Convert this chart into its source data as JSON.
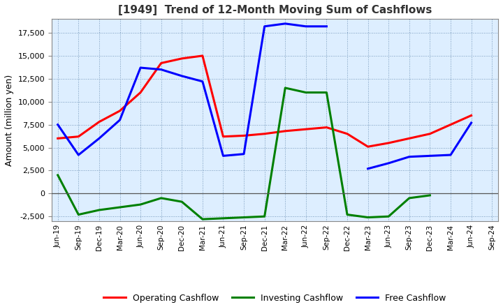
{
  "title": "[1949]  Trend of 12-Month Moving Sum of Cashflows",
  "ylabel": "Amount (million yen)",
  "xlabel": "",
  "background_color": "#ffffff",
  "plot_background_color": "#ddeeff",
  "grid_color": "#7799bb",
  "ylim": [
    -3000,
    19000
  ],
  "yticks": [
    -2500,
    0,
    2500,
    5000,
    7500,
    10000,
    12500,
    15000,
    17500
  ],
  "x_labels": [
    "Jun-19",
    "Sep-19",
    "Dec-19",
    "Mar-20",
    "Jun-20",
    "Sep-20",
    "Dec-20",
    "Mar-21",
    "Jun-21",
    "Sep-21",
    "Dec-21",
    "Mar-22",
    "Jun-22",
    "Sep-22",
    "Dec-22",
    "Mar-23",
    "Jun-23",
    "Sep-23",
    "Dec-23",
    "Mar-24",
    "Jun-24",
    "Sep-24"
  ],
  "operating_cashflow": [
    6000,
    6200,
    7800,
    9000,
    11000,
    14200,
    14700,
    15000,
    6200,
    6300,
    6500,
    6800,
    7000,
    7200,
    6500,
    5100,
    5500,
    6000,
    6500,
    7500,
    8500,
    null
  ],
  "investing_cashflow": [
    2000,
    -2300,
    -1800,
    -1500,
    -1200,
    -500,
    -900,
    -2800,
    -2700,
    -2600,
    -2500,
    11500,
    11000,
    11000,
    -2300,
    -2600,
    -2500,
    -500,
    -200,
    null,
    null,
    null
  ],
  "free_cashflow": [
    7500,
    4200,
    6000,
    8000,
    13700,
    13500,
    12800,
    12200,
    4100,
    4300,
    18200,
    18500,
    18200,
    18200,
    null,
    2700,
    3300,
    4000,
    4100,
    4200,
    7700,
    null
  ],
  "operating_color": "#ff0000",
  "investing_color": "#008000",
  "free_color": "#0000ff",
  "line_width": 2.2
}
